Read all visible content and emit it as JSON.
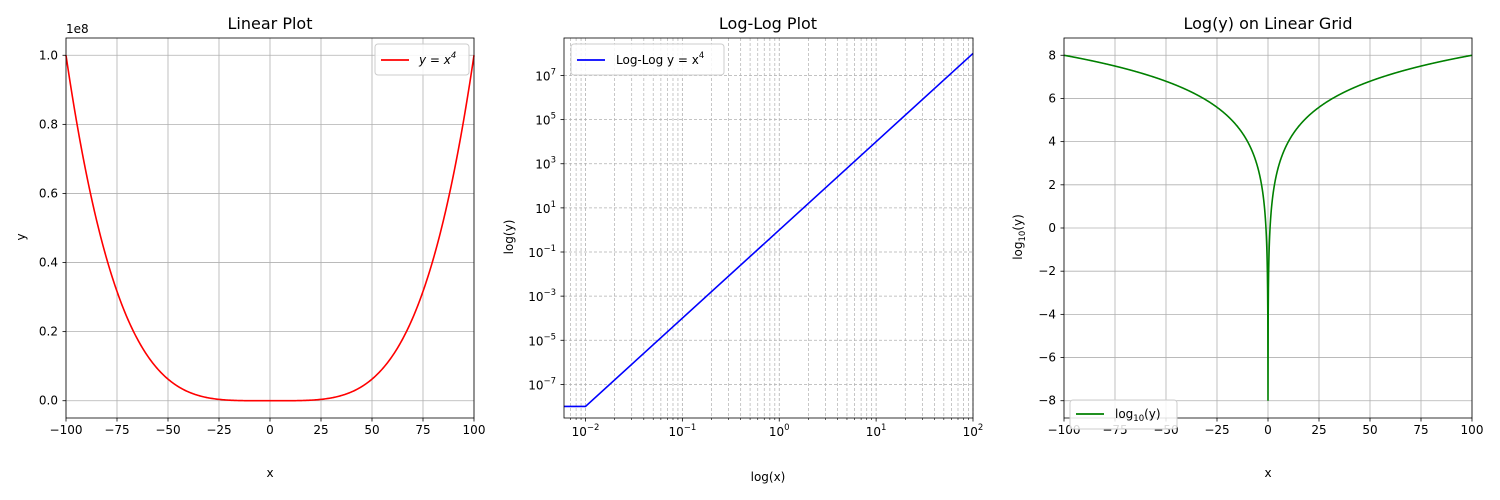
{
  "chart_data": [
    {
      "type": "line",
      "title": "Linear Plot",
      "xlabel": "x",
      "ylabel": "y",
      "offset_text": "1e8",
      "xlim": [
        -100,
        100
      ],
      "ylim": [
        -0.05,
        1.05
      ],
      "y_scale": "1e8",
      "x_ticks": [
        -100,
        -75,
        -50,
        -25,
        0,
        25,
        50,
        75,
        100
      ],
      "x_tick_labels": [
        "−100",
        "−75",
        "−50",
        "−25",
        "0",
        "25",
        "50",
        "75",
        "100"
      ],
      "y_ticks": [
        0,
        0.2,
        0.4,
        0.6,
        0.8,
        1.0
      ],
      "y_tick_labels": [
        "0.0",
        "0.2",
        "0.4",
        "0.6",
        "0.8",
        "1.0"
      ],
      "grid": true,
      "legend_position": "top-right",
      "series": [
        {
          "name": "y = x^4",
          "legend_base": "y = x",
          "legend_sup": "4",
          "color": "#ff0000",
          "function": "x^4",
          "x_range": [
            -100,
            100
          ]
        }
      ]
    },
    {
      "type": "line",
      "title": "Log-Log Plot",
      "xlabel": "log(x)",
      "ylabel": "log(y)",
      "x_scale": "log",
      "y_scale": "log",
      "xlim": [
        0.006,
        100
      ],
      "ylim": [
        3e-09,
        500000000.0
      ],
      "x_ticks": [
        0.01,
        0.1,
        1,
        10,
        100
      ],
      "x_tick_exponents": [
        "−2",
        "−1",
        "0",
        "1",
        "2"
      ],
      "y_ticks": [
        1e-07,
        1e-05,
        0.001,
        0.1,
        10.0,
        1000.0,
        100000.0,
        10000000.0
      ],
      "y_tick_exponents": [
        "−7",
        "−5",
        "−3",
        "−1",
        "1",
        "3",
        "5",
        "7"
      ],
      "grid": "both, dashed",
      "legend_position": "top-left",
      "series": [
        {
          "name": "Log-Log y = x^4",
          "legend_base": "Log-Log y = x",
          "legend_sup": "4",
          "color": "#0000ff",
          "x": [
            0.006,
            0.01,
            100
          ],
          "y": [
            1e-08,
            1e-08,
            100000000.0
          ]
        }
      ]
    },
    {
      "type": "line",
      "title": "Log(y) on Linear Grid",
      "xlabel": "x",
      "ylabel": "log10(y)",
      "ylabel_base": "log",
      "ylabel_sub": "10",
      "ylabel_arg": "(y)",
      "xlim": [
        -100,
        100
      ],
      "ylim": [
        -8.8,
        8.8
      ],
      "x_ticks": [
        -100,
        -75,
        -50,
        -25,
        0,
        25,
        50,
        75,
        100
      ],
      "x_tick_labels": [
        "−100",
        "−75",
        "−50",
        "−25",
        "0",
        "25",
        "50",
        "75",
        "100"
      ],
      "y_ticks": [
        -8,
        -6,
        -4,
        -2,
        0,
        2,
        4,
        6,
        8
      ],
      "y_tick_labels": [
        "−8",
        "−6",
        "−4",
        "−2",
        "0",
        "2",
        "4",
        "6",
        "8"
      ],
      "grid": true,
      "legend_position": "bottom-left",
      "series": [
        {
          "name": "log10(y)",
          "legend_base": "log",
          "legend_sub": "10",
          "legend_arg": "(y)",
          "color": "#008000",
          "function": "log10(x^4)",
          "x_range": [
            -100,
            100
          ],
          "floor": -8
        }
      ]
    }
  ]
}
